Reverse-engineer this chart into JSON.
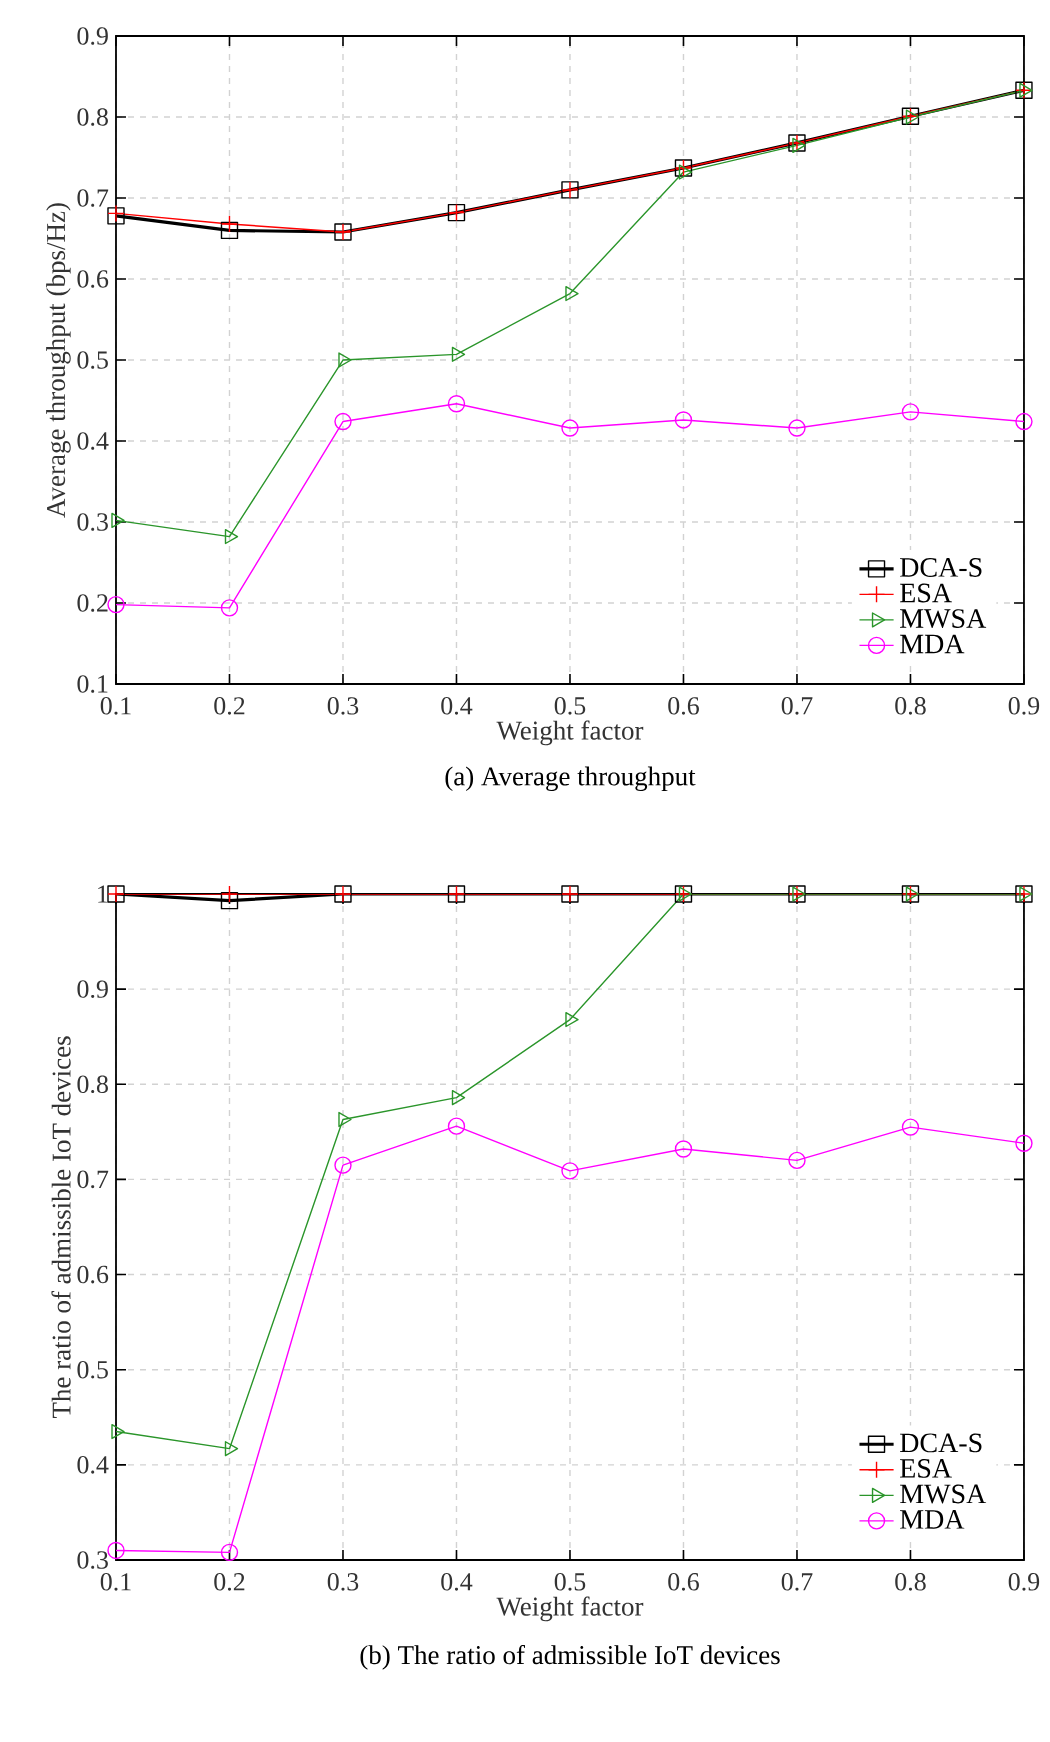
{
  "chart_data": [
    {
      "type": "line",
      "title": "(a) Average throughput",
      "xlabel": "Weight factor",
      "ylabel": "Average throughput (bps/Hz)",
      "x": [
        0.1,
        0.2,
        0.3,
        0.4,
        0.5,
        0.6,
        0.7,
        0.8,
        0.9
      ],
      "xlim": [
        0.1,
        0.9
      ],
      "xticks": [
        0.1,
        0.2,
        0.3,
        0.4,
        0.5,
        0.6,
        0.7,
        0.8,
        0.9
      ],
      "ylim": [
        0.1,
        0.9
      ],
      "yticks": [
        0.1,
        0.2,
        0.3,
        0.4,
        0.5,
        0.6,
        0.7,
        0.8,
        0.9
      ],
      "grid": true,
      "legend": "bottom right",
      "line_style": "solid",
      "series": [
        {
          "name": "DCA-S",
          "color": "#000000",
          "marker": "square",
          "values": [
            0.678,
            0.66,
            0.658,
            0.682,
            0.71,
            0.737,
            0.768,
            0.801,
            0.833
          ]
        },
        {
          "name": "ESA",
          "color": "#ff0000",
          "marker": "cross",
          "values": [
            0.681,
            0.668,
            0.658,
            0.682,
            0.71,
            0.737,
            0.768,
            0.801,
            0.833
          ]
        },
        {
          "name": "MWSA",
          "color": "#2a952a",
          "marker": "triangle",
          "values": [
            0.302,
            0.282,
            0.5,
            0.507,
            0.582,
            0.732,
            0.765,
            0.8,
            0.833
          ]
        },
        {
          "name": "MDA",
          "color": "#ff00ff",
          "marker": "circle",
          "values": [
            0.198,
            0.194,
            0.424,
            0.446,
            0.416,
            0.426,
            0.416,
            0.436,
            0.424
          ]
        }
      ]
    },
    {
      "type": "line",
      "title": "(b) The ratio of admissible IoT devices",
      "xlabel": "Weight factor",
      "ylabel": "The ratio of admissible IoT devices",
      "x": [
        0.1,
        0.2,
        0.3,
        0.4,
        0.5,
        0.6,
        0.7,
        0.8,
        0.9
      ],
      "xlim": [
        0.1,
        0.9
      ],
      "xticks": [
        0.1,
        0.2,
        0.3,
        0.4,
        0.5,
        0.6,
        0.7,
        0.8,
        0.9
      ],
      "ylim": [
        0.3,
        1
      ],
      "yticks": [
        0.3,
        0.4,
        0.5,
        0.6,
        0.7,
        0.8,
        0.9,
        1
      ],
      "grid": true,
      "legend": "bottom right",
      "line_style": "solid",
      "series": [
        {
          "name": "DCA-S",
          "color": "#000000",
          "marker": "square",
          "values": [
            1,
            0.993,
            1,
            1,
            1,
            1,
            1,
            1,
            1
          ]
        },
        {
          "name": "ESA",
          "color": "#ff0000",
          "marker": "cross",
          "values": [
            1,
            1,
            1,
            1,
            1,
            1,
            1,
            1,
            1
          ]
        },
        {
          "name": "MWSA",
          "color": "#2a952a",
          "marker": "triangle",
          "values": [
            0.435,
            0.417,
            0.763,
            0.786,
            0.868,
            1,
            1,
            1,
            1
          ]
        },
        {
          "name": "MDA",
          "color": "#ff00ff",
          "marker": "circle",
          "values": [
            0.31,
            0.308,
            0.715,
            0.756,
            0.709,
            0.732,
            0.72,
            0.755,
            0.738
          ]
        }
      ]
    }
  ]
}
